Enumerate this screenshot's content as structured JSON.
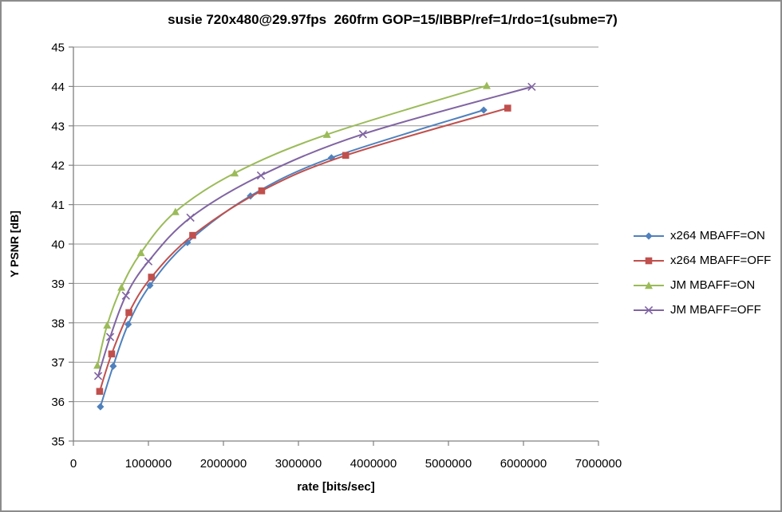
{
  "chart_data": {
    "type": "line",
    "title": "susie 720x480@29.97fps  260frm GOP=15/IBBP/ref=1/rdo=1(subme=7)",
    "xlabel": "rate [bits/sec]",
    "ylabel": "Y PSNR [dB]",
    "xlim": [
      0,
      7000000
    ],
    "ylim": [
      35,
      45
    ],
    "x_ticks": [
      "0",
      "1000000",
      "2000000",
      "3000000",
      "4000000",
      "5000000",
      "6000000",
      "7000000"
    ],
    "y_ticks": [
      "35",
      "36",
      "37",
      "38",
      "39",
      "40",
      "41",
      "42",
      "43",
      "44",
      "45"
    ],
    "grid": "horizontal-major",
    "grid_color": "#969696",
    "axis_color": "#808080",
    "legend_position": "right",
    "smooth_lines": true,
    "series": [
      {
        "name": "x264 MBAFF=ON",
        "color": "#4F81BD",
        "marker": "diamond",
        "points": [
          [
            360000,
            35.87
          ],
          [
            530000,
            36.9
          ],
          [
            730000,
            37.96
          ],
          [
            1020000,
            38.95
          ],
          [
            1520000,
            40.04
          ],
          [
            2360000,
            41.22
          ],
          [
            3440000,
            42.19
          ],
          [
            5470000,
            43.4
          ]
        ]
      },
      {
        "name": "x264 MBAFF=OFF",
        "color": "#C0504D",
        "marker": "square",
        "points": [
          [
            350000,
            36.26
          ],
          [
            510000,
            37.21
          ],
          [
            740000,
            38.26
          ],
          [
            1040000,
            39.16
          ],
          [
            1590000,
            40.22
          ],
          [
            2510000,
            41.35
          ],
          [
            3630000,
            42.25
          ],
          [
            5790000,
            43.45
          ]
        ]
      },
      {
        "name": "JM MBAFF=ON",
        "color": "#9BBB59",
        "marker": "triangle",
        "points": [
          [
            320000,
            36.92
          ],
          [
            450000,
            37.94
          ],
          [
            640000,
            38.9
          ],
          [
            900000,
            39.78
          ],
          [
            1360000,
            40.82
          ],
          [
            2150000,
            41.8
          ],
          [
            3380000,
            42.78
          ],
          [
            5510000,
            44.02
          ]
        ]
      },
      {
        "name": "JM MBAFF=OFF",
        "color": "#8064A2",
        "marker": "x",
        "points": [
          [
            330000,
            36.65
          ],
          [
            490000,
            37.64
          ],
          [
            700000,
            38.69
          ],
          [
            1000000,
            39.56
          ],
          [
            1560000,
            40.67
          ],
          [
            2500000,
            41.74
          ],
          [
            3860000,
            42.79
          ],
          [
            6110000,
            43.99
          ]
        ]
      }
    ]
  }
}
